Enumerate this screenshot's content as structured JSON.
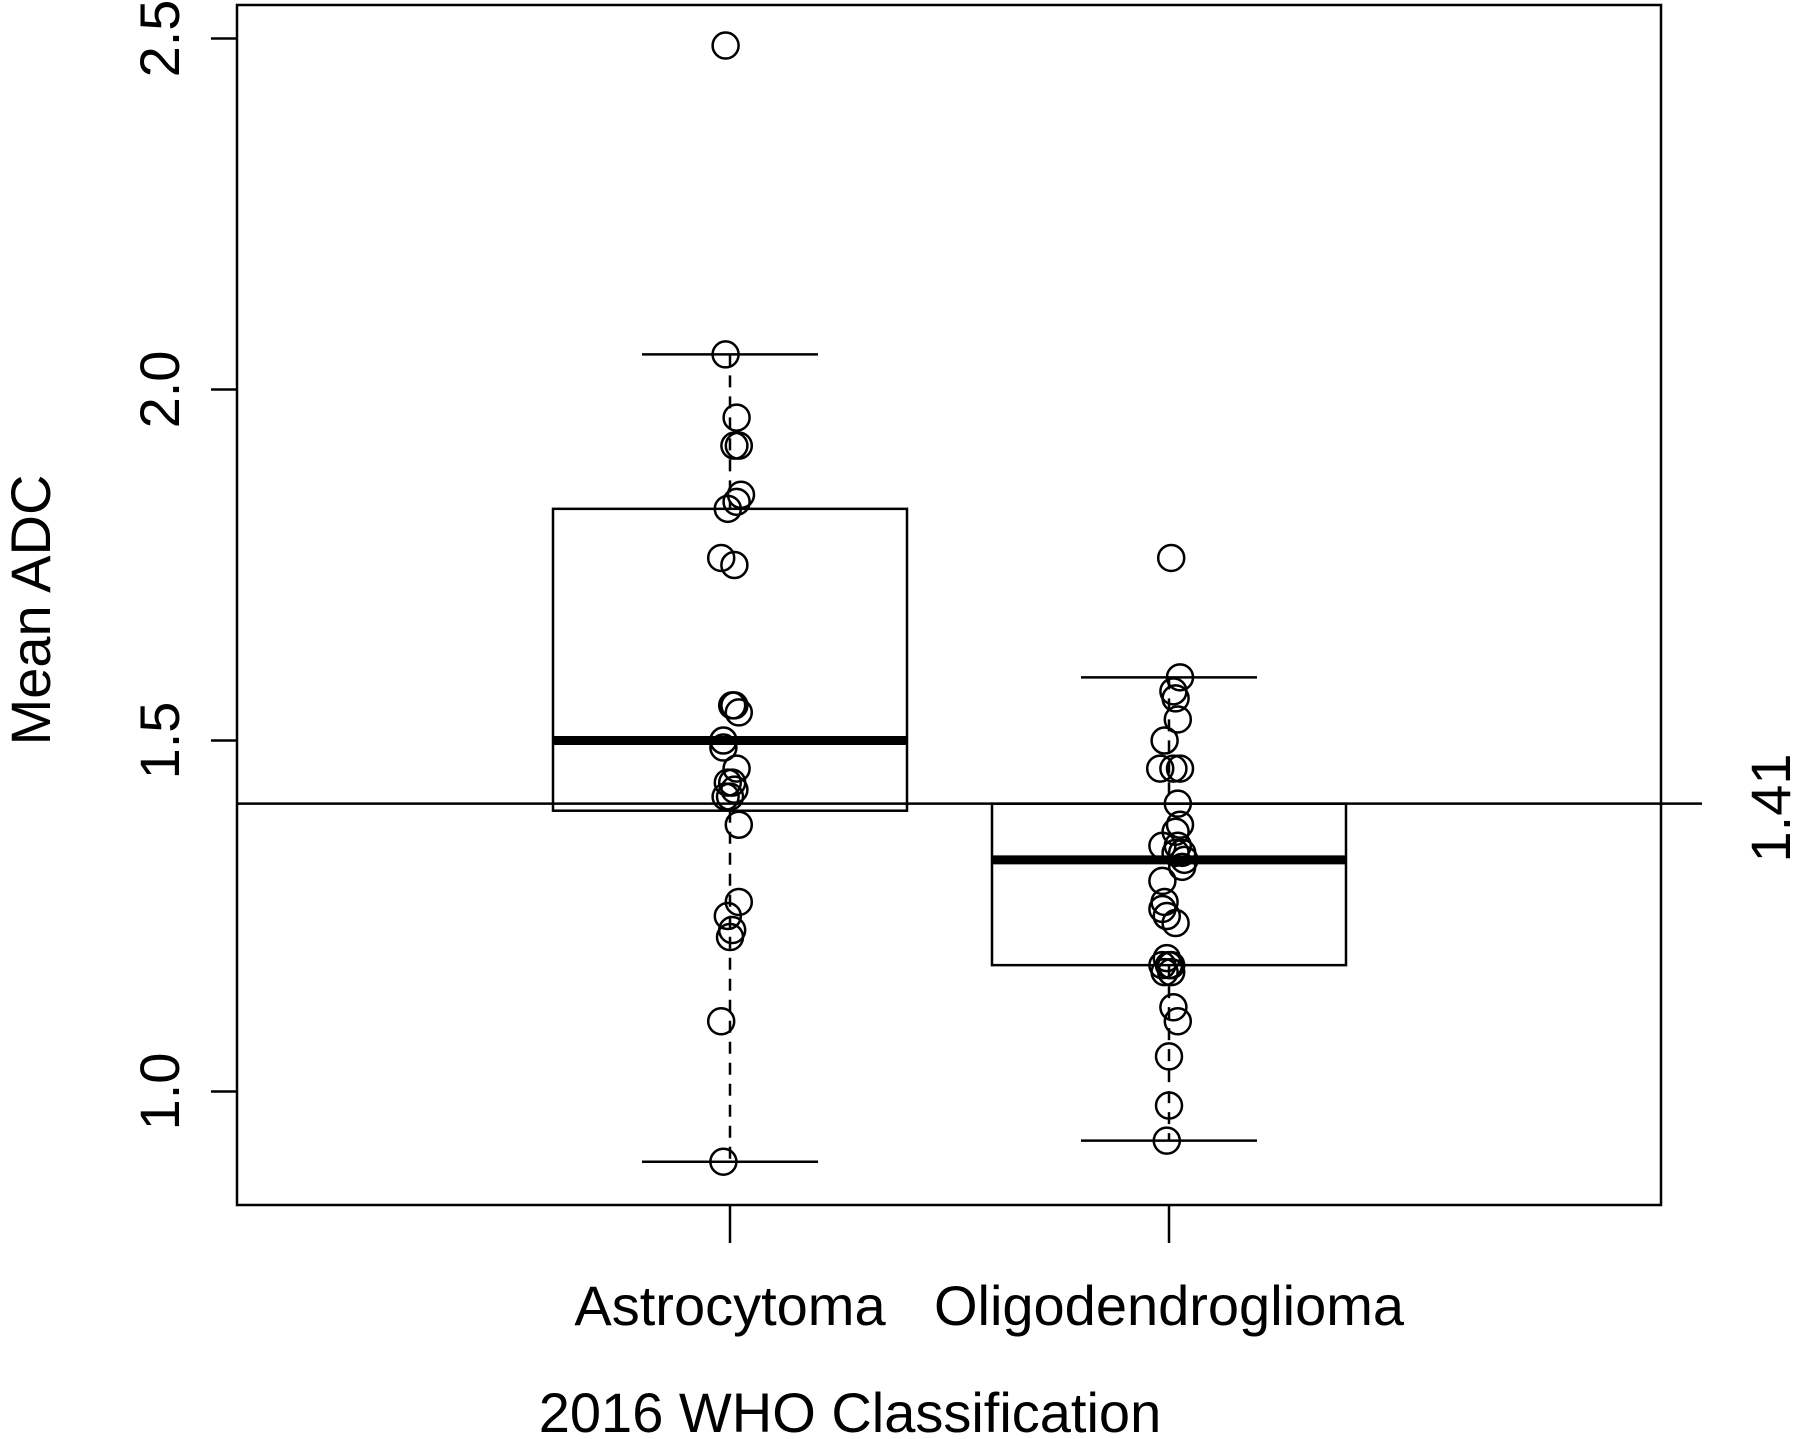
{
  "chart_data": {
    "type": "box",
    "xlabel": "2016 WHO Classification",
    "ylabel": "Mean ADC",
    "ylim": [
      0.83,
      2.555
    ],
    "yticks": [
      1.0,
      1.5,
      2.0,
      2.5
    ],
    "ytick_labels": [
      "1.0",
      "1.5",
      "2.0",
      "2.5"
    ],
    "categories": [
      "Astrocytoma",
      "Oligodendroglioma"
    ],
    "reference_line": {
      "value": 1.41,
      "label": "1.41"
    },
    "grid": false,
    "groups": [
      {
        "name": "Astrocytoma",
        "whisker_low": 0.9,
        "q1": 1.4,
        "median": 1.5,
        "q3": 1.83,
        "whisker_high": 2.05,
        "points": [
          {
            "x": -0.02,
            "y": 2.49
          },
          {
            "x": -0.02,
            "y": 2.05
          },
          {
            "x": 0.03,
            "y": 1.96
          },
          {
            "x": 0.02,
            "y": 1.92
          },
          {
            "x": 0.04,
            "y": 1.92
          },
          {
            "x": 0.05,
            "y": 1.85
          },
          {
            "x": 0.03,
            "y": 1.84
          },
          {
            "x": -0.01,
            "y": 1.83
          },
          {
            "x": -0.04,
            "y": 1.76
          },
          {
            "x": 0.02,
            "y": 1.75
          },
          {
            "x": 0.01,
            "y": 1.55
          },
          {
            "x": 0.02,
            "y": 1.55
          },
          {
            "x": 0.04,
            "y": 1.54
          },
          {
            "x": -0.03,
            "y": 1.5
          },
          {
            "x": -0.03,
            "y": 1.49
          },
          {
            "x": 0.03,
            "y": 1.46
          },
          {
            "x": 0.01,
            "y": 1.44
          },
          {
            "x": -0.01,
            "y": 1.44
          },
          {
            "x": 0.02,
            "y": 1.43
          },
          {
            "x": 0.0,
            "y": 1.42
          },
          {
            "x": -0.02,
            "y": 1.42
          },
          {
            "x": 0.04,
            "y": 1.38
          },
          {
            "x": 0.04,
            "y": 1.27
          },
          {
            "x": -0.01,
            "y": 1.25
          },
          {
            "x": 0.01,
            "y": 1.23
          },
          {
            "x": 0.0,
            "y": 1.22
          },
          {
            "x": -0.04,
            "y": 1.1
          },
          {
            "x": -0.03,
            "y": 0.9
          }
        ]
      },
      {
        "name": "Oligodendroglioma",
        "whisker_low": 0.93,
        "q1": 1.18,
        "median": 1.33,
        "q3": 1.41,
        "whisker_high": 1.59,
        "points": [
          {
            "x": 0.01,
            "y": 1.76
          },
          {
            "x": 0.05,
            "y": 1.59
          },
          {
            "x": 0.02,
            "y": 1.57
          },
          {
            "x": 0.03,
            "y": 1.56
          },
          {
            "x": 0.04,
            "y": 1.53
          },
          {
            "x": -0.02,
            "y": 1.5
          },
          {
            "x": -0.04,
            "y": 1.46
          },
          {
            "x": 0.02,
            "y": 1.46
          },
          {
            "x": 0.05,
            "y": 1.46
          },
          {
            "x": 0.04,
            "y": 1.41
          },
          {
            "x": 0.05,
            "y": 1.38
          },
          {
            "x": 0.03,
            "y": 1.37
          },
          {
            "x": -0.03,
            "y": 1.35
          },
          {
            "x": 0.04,
            "y": 1.35
          },
          {
            "x": 0.06,
            "y": 1.34
          },
          {
            "x": 0.03,
            "y": 1.34
          },
          {
            "x": 0.07,
            "y": 1.33
          },
          {
            "x": 0.06,
            "y": 1.32
          },
          {
            "x": -0.03,
            "y": 1.3
          },
          {
            "x": -0.02,
            "y": 1.27
          },
          {
            "x": -0.03,
            "y": 1.26
          },
          {
            "x": -0.01,
            "y": 1.25
          },
          {
            "x": 0.03,
            "y": 1.24
          },
          {
            "x": -0.01,
            "y": 1.19
          },
          {
            "x": 0.0,
            "y": 1.18
          },
          {
            "x": -0.03,
            "y": 1.18
          },
          {
            "x": -0.02,
            "y": 1.17
          },
          {
            "x": 0.01,
            "y": 1.17
          },
          {
            "x": 0.01,
            "y": 1.18
          },
          {
            "x": 0.02,
            "y": 1.12
          },
          {
            "x": 0.04,
            "y": 1.1
          },
          {
            "x": 0.0,
            "y": 1.05
          },
          {
            "x": 0.0,
            "y": 0.98
          },
          {
            "x": -0.01,
            "y": 0.93
          }
        ]
      }
    ]
  }
}
